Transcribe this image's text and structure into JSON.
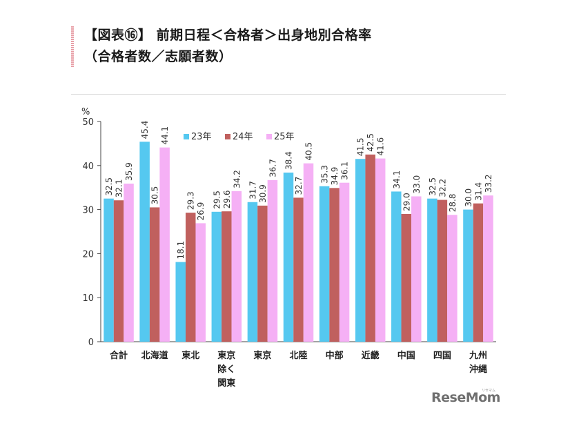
{
  "title": {
    "line1": "【図表⑯】 前期日程＜合格者＞出身地別合格率",
    "line2": "（合格者数／志願者数）"
  },
  "chart_data": {
    "type": "bar",
    "unit": "%",
    "categories": [
      [
        "合計"
      ],
      [
        "北海道"
      ],
      [
        "東北"
      ],
      [
        "東京",
        "除く",
        "関東"
      ],
      [
        "東京"
      ],
      [
        "北陸"
      ],
      [
        "中部"
      ],
      [
        "近畿"
      ],
      [
        "中国"
      ],
      [
        "四国"
      ],
      [
        "九州",
        "沖縄"
      ]
    ],
    "series": [
      {
        "name": "23年",
        "color": "#55c8f0",
        "values": [
          32.5,
          45.4,
          18.1,
          29.5,
          31.7,
          38.4,
          35.3,
          41.5,
          34.1,
          32.5,
          30.0
        ]
      },
      {
        "name": "24年",
        "color": "#c0605e",
        "values": [
          32.1,
          30.5,
          29.3,
          29.6,
          30.9,
          32.7,
          34.9,
          42.5,
          29.0,
          32.2,
          31.4
        ]
      },
      {
        "name": "25年",
        "color": "#f5b0f5",
        "values": [
          35.9,
          44.1,
          26.9,
          34.2,
          36.7,
          40.5,
          36.1,
          41.6,
          33.0,
          28.8,
          33.2
        ]
      }
    ],
    "ylim": [
      0,
      50
    ],
    "yticks": [
      0,
      10,
      20,
      30,
      40,
      50
    ],
    "legend_position": "top-center"
  },
  "logo": {
    "text": "ReseMom",
    "kana": "リセマム"
  }
}
